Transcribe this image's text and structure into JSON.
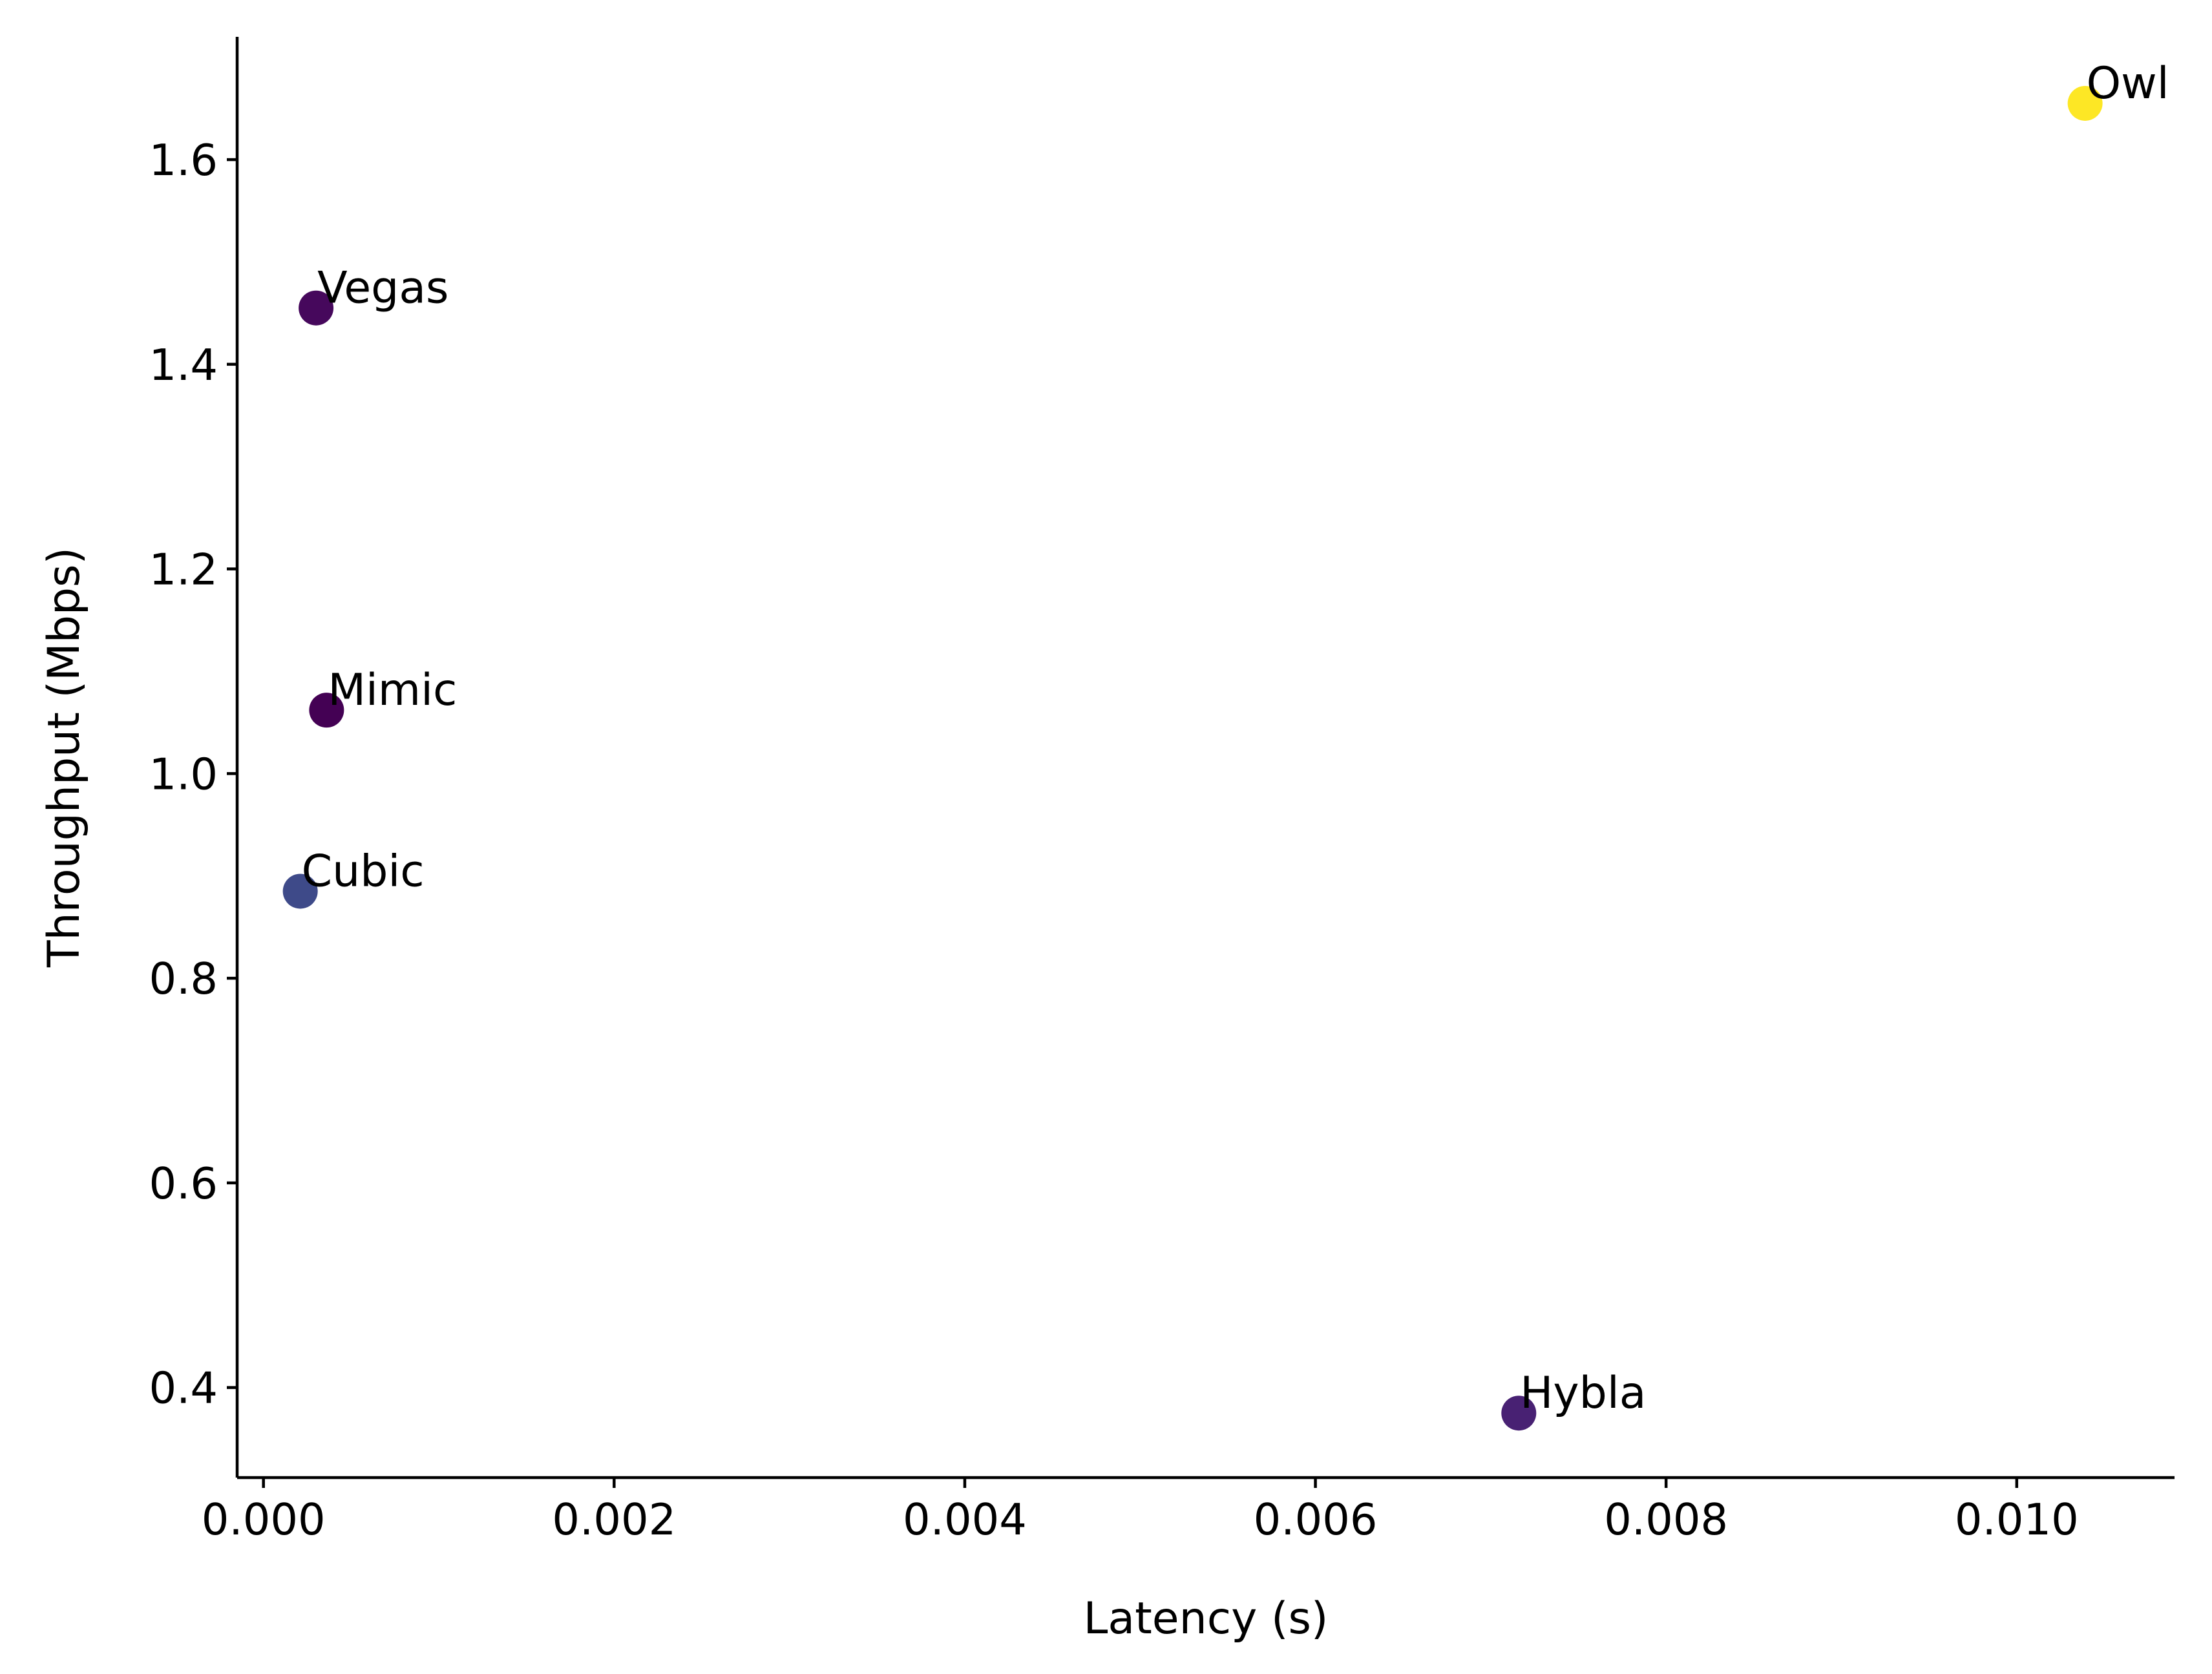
{
  "chart_data": {
    "type": "scatter",
    "title": "",
    "xlabel": "Latency (s)",
    "ylabel": "Throughput (Mbps)",
    "xlim": [
      -0.00015,
      0.0109
    ],
    "ylim": [
      0.312,
      1.72
    ],
    "grid": false,
    "x_ticks": [
      0.0,
      0.002,
      0.004,
      0.006,
      0.008,
      0.01
    ],
    "x_tick_labels": [
      "0.000",
      "0.002",
      "0.004",
      "0.006",
      "0.008",
      "0.010"
    ],
    "y_ticks": [
      0.4,
      0.6,
      0.8,
      1.0,
      1.2,
      1.4,
      1.6
    ],
    "y_tick_labels": [
      "0.4",
      "0.6",
      "0.8",
      "1.0",
      "1.2",
      "1.4",
      "1.6"
    ],
    "points": [
      {
        "label": "Owl",
        "x": 0.01039,
        "y": 1.655,
        "color": "#fde725"
      },
      {
        "label": "Vegas",
        "x": 0.0003,
        "y": 1.455,
        "color": "#46085c"
      },
      {
        "label": "Mimic",
        "x": 0.00036,
        "y": 1.062,
        "color": "#440154"
      },
      {
        "label": "Cubic",
        "x": 0.00021,
        "y": 0.885,
        "color": "#3e4a89"
      },
      {
        "label": "Hybla",
        "x": 0.00716,
        "y": 0.375,
        "color": "#482173"
      }
    ]
  }
}
